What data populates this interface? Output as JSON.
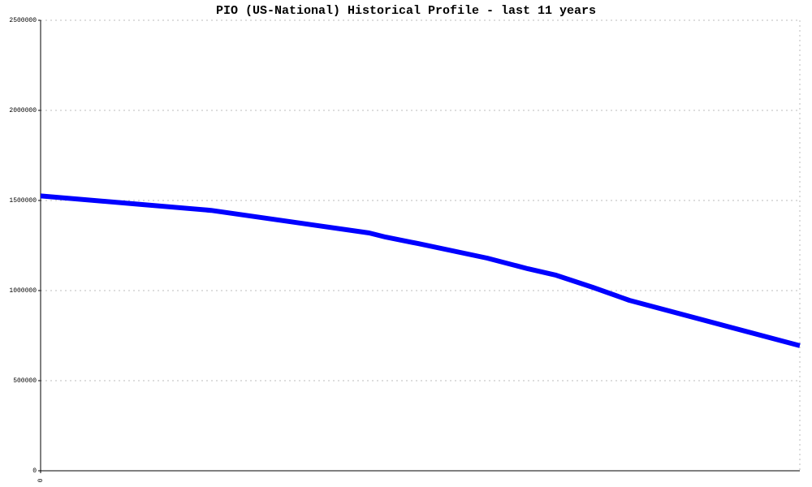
{
  "chart_data": {
    "type": "line",
    "title": "PIO (US-National) Historical Profile - last 11 years",
    "x": [
      0,
      2.47,
      4.76,
      5,
      5.47,
      6.47,
      7.06,
      7.47,
      8,
      8.53,
      11
    ],
    "values": [
      1525000,
      1445000,
      1320000,
      1297000,
      1261000,
      1180000,
      1121000,
      1085000,
      1018000,
      946000,
      694000
    ],
    "color": "#0000ff",
    "xlim": [
      0,
      11
    ],
    "xticks": [
      0
    ],
    "ylim": [
      0,
      2500000
    ],
    "yticks": [
      0,
      500000,
      1000000,
      1500000,
      2000000,
      2500000
    ],
    "grid": true
  }
}
